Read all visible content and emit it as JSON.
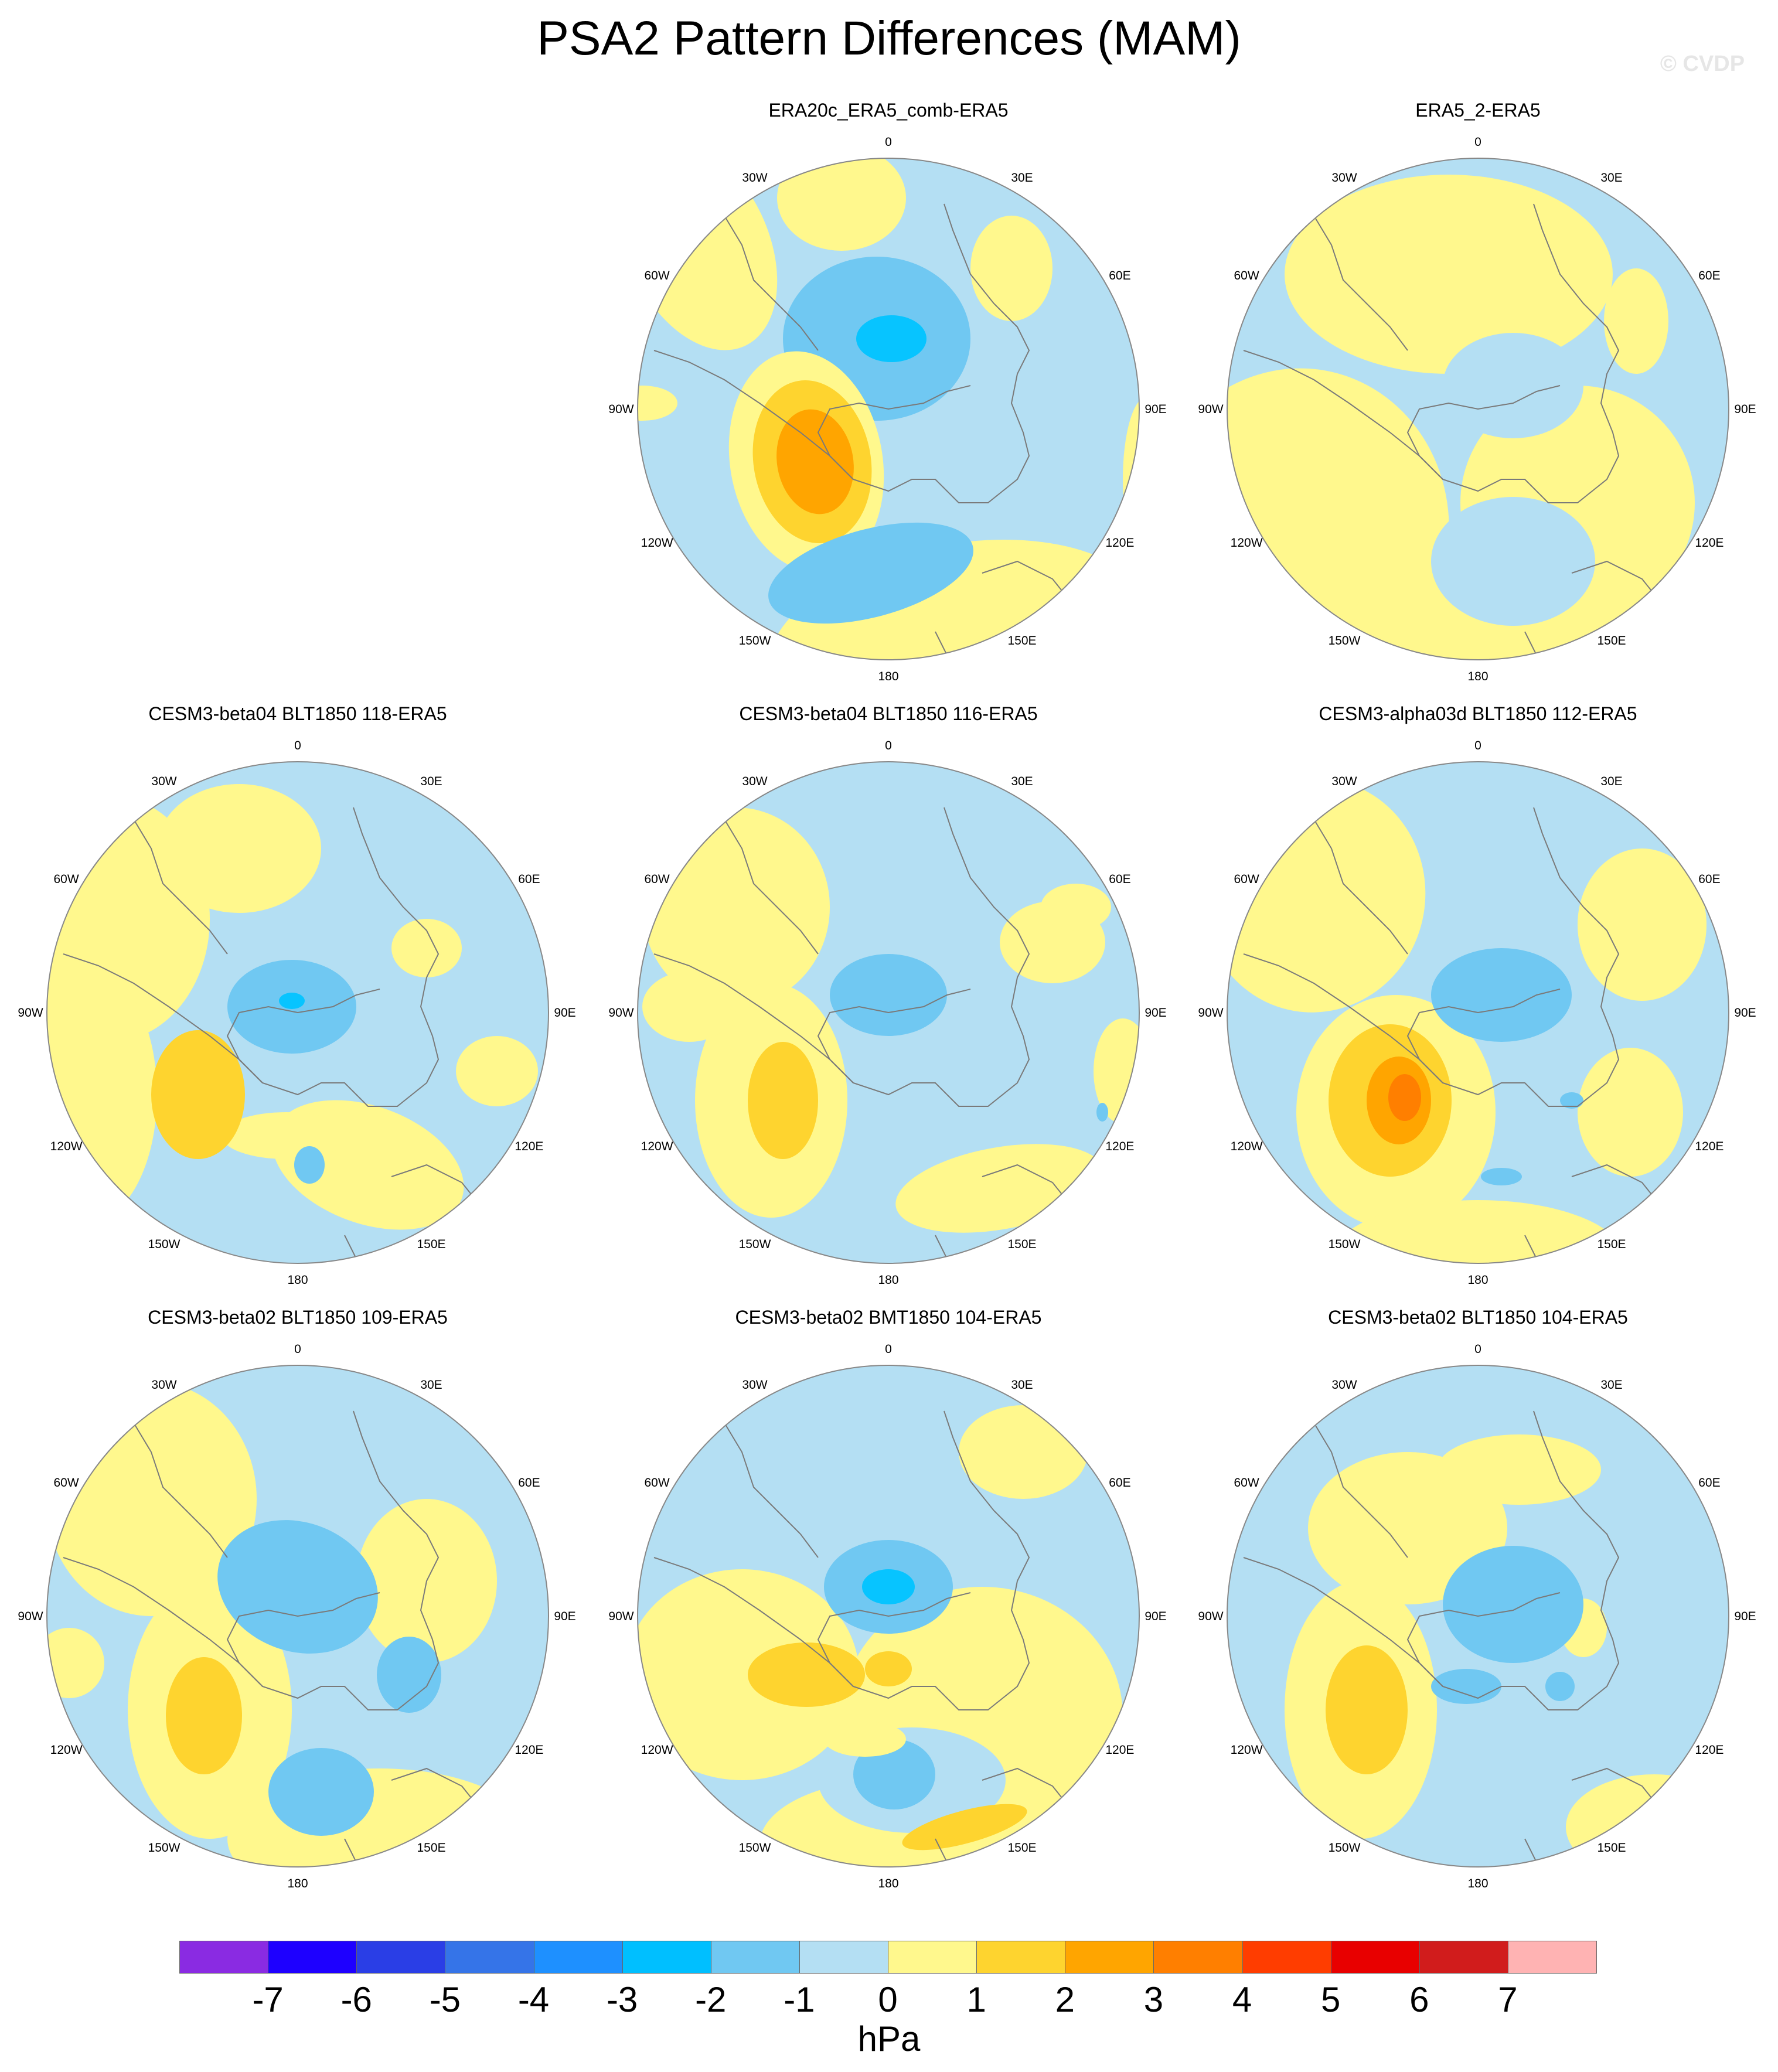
{
  "title": "PSA2 Pattern Differences (MAM)",
  "watermark": "© CVDP",
  "colors": {
    "neg3": "#07c4ff",
    "neg2": "#70c8f2",
    "neg1": "#b4dff3",
    "pos1": "#fff88d",
    "pos2": "#fed42f",
    "pos3": "#ffa500",
    "pos4": "#ff7f00",
    "coast": "#7a7a7a"
  },
  "tick_labels": {
    "top": "0",
    "bottom": "180",
    "left": "90W",
    "right": "90E",
    "upper_left": "30W",
    "upper_right": "30E",
    "mid_upper_left": "60W",
    "mid_upper_right": "60E",
    "mid_lower_left": "120W",
    "mid_lower_right": "120E",
    "lower_left": "150W",
    "lower_right": "150E"
  },
  "panels": [
    {
      "title": "ERA20c_ERA5_comb-ERA5"
    },
    {
      "title": "ERA5_2-ERA5"
    },
    {
      "title": "CESM3-beta04 BLT1850 118-ERA5"
    },
    {
      "title": "CESM3-beta04 BLT1850 116-ERA5"
    },
    {
      "title": "CESM3-alpha03d BLT1850 112-ERA5"
    },
    {
      "title": "CESM3-beta02 BLT1850 109-ERA5"
    },
    {
      "title": "CESM3-beta02 BMT1850 104-ERA5"
    },
    {
      "title": "CESM3-beta02 BLT1850 104-ERA5"
    }
  ],
  "colorbar": {
    "units": "hPa",
    "labels": [
      "-7",
      "-6",
      "-5",
      "-4",
      "-3",
      "-2",
      "-1",
      "0",
      "1",
      "2",
      "3",
      "4",
      "5",
      "6",
      "7"
    ],
    "colors": [
      "#8a2be2",
      "#1e00ff",
      "#2a3ee6",
      "#3574e8",
      "#1e90ff",
      "#00bfff",
      "#70c8f2",
      "#b4dff3",
      "#fff88d",
      "#fed42f",
      "#ffa500",
      "#ff7f00",
      "#ff3d00",
      "#e80000",
      "#d11c1c",
      "#ffb3b3"
    ]
  }
}
